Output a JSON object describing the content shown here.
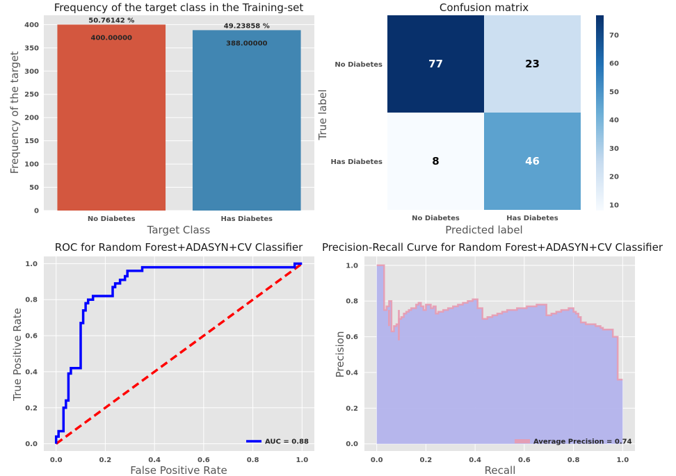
{
  "colors": {
    "panel_bg": "#e5e5e5",
    "grid": "#ffffff",
    "bar_no_diabetes": "#d3573f",
    "bar_has_diabetes": "#4186b2",
    "roc_line": "#0000ff",
    "diagonal": "#ff0000",
    "pr_fill": "#b3b3ec",
    "pr_line": "#e89bb0",
    "cm_dark": "#08306b",
    "cm_light": "#f7fbff"
  },
  "chart_data": [
    {
      "id": "bar",
      "type": "bar",
      "title": "Frequency of the target class in the Training-set",
      "xlabel": "Target Class",
      "ylabel": "Frequency of the target",
      "categories": [
        "No Diabetes",
        "Has Diabetes"
      ],
      "values": [
        400,
        388
      ],
      "value_labels": [
        "400.00000",
        "388.00000"
      ],
      "percent_labels": [
        "50.76142 %",
        "49.23858 %"
      ],
      "ylim": [
        0,
        420
      ],
      "yticks": [
        0,
        50,
        100,
        150,
        200,
        250,
        300,
        350,
        400
      ],
      "grid": true
    },
    {
      "id": "cm",
      "type": "heatmap",
      "title": "Confusion matrix",
      "xlabel": "Predicted label",
      "ylabel": "True label",
      "rows": [
        "No Diabetes",
        "Has Diabetes"
      ],
      "cols": [
        "No Diabetes",
        "Has Diabetes"
      ],
      "values": [
        [
          77,
          23
        ],
        [
          8,
          46
        ]
      ],
      "colorbar": {
        "min": 8,
        "max": 77,
        "ticks": [
          10,
          20,
          30,
          40,
          50,
          60,
          70
        ]
      }
    },
    {
      "id": "roc",
      "type": "line",
      "title": "ROC for Random Forest+ADASYN+CV Classifier",
      "xlabel": "False Positive Rate",
      "ylabel": "True Positive Rate",
      "xlim": [
        -0.05,
        1.05
      ],
      "ylim": [
        -0.04,
        1.04
      ],
      "xticks": [
        0.0,
        0.2,
        0.4,
        0.6,
        0.8,
        1.0
      ],
      "yticks": [
        0.0,
        0.2,
        0.4,
        0.6,
        0.8,
        1.0
      ],
      "legend_position": "lower-right",
      "series": [
        {
          "name": "AUC = 0.88",
          "x": [
            0.0,
            0.0,
            0.01,
            0.01,
            0.03,
            0.03,
            0.04,
            0.04,
            0.05,
            0.05,
            0.06,
            0.06,
            0.08,
            0.08,
            0.1,
            0.1,
            0.11,
            0.11,
            0.12,
            0.12,
            0.13,
            0.13,
            0.15,
            0.15,
            0.16,
            0.16,
            0.23,
            0.23,
            0.24,
            0.24,
            0.26,
            0.26,
            0.28,
            0.28,
            0.29,
            0.29,
            0.35,
            0.35,
            0.97,
            0.97,
            1.0
          ],
          "y": [
            0.0,
            0.04,
            0.04,
            0.07,
            0.07,
            0.2,
            0.2,
            0.24,
            0.24,
            0.39,
            0.39,
            0.42,
            0.42,
            0.42,
            0.42,
            0.67,
            0.67,
            0.74,
            0.74,
            0.78,
            0.78,
            0.8,
            0.8,
            0.82,
            0.82,
            0.82,
            0.82,
            0.87,
            0.87,
            0.89,
            0.89,
            0.91,
            0.91,
            0.93,
            0.93,
            0.96,
            0.96,
            0.98,
            0.98,
            1.0,
            1.0
          ]
        },
        {
          "x": [
            0.0,
            1.0
          ],
          "y": [
            0.0,
            1.0
          ]
        }
      ]
    },
    {
      "id": "pr",
      "type": "area",
      "title": "Precision-Recall Curve for Random Forest+ADASYN+CV Classifier",
      "xlabel": "Recall",
      "ylabel": "Precision",
      "xlim": [
        -0.05,
        1.05
      ],
      "ylim": [
        -0.04,
        1.05
      ],
      "xticks": [
        0.0,
        0.2,
        0.4,
        0.6,
        0.8,
        1.0
      ],
      "yticks": [
        0.0,
        0.2,
        0.4,
        0.6,
        0.8,
        1.0
      ],
      "legend_position": "lower-right",
      "series": [
        {
          "name": "Average Precision = 0.74",
          "recall": [
            0.0,
            0.03,
            0.04,
            0.05,
            0.06,
            0.07,
            0.08,
            0.09,
            0.1,
            0.11,
            0.12,
            0.13,
            0.14,
            0.15,
            0.16,
            0.17,
            0.18,
            0.19,
            0.2,
            0.22,
            0.23,
            0.24,
            0.25,
            0.27,
            0.29,
            0.31,
            0.33,
            0.35,
            0.37,
            0.39,
            0.41,
            0.43,
            0.45,
            0.47,
            0.49,
            0.51,
            0.53,
            0.55,
            0.57,
            0.59,
            0.61,
            0.63,
            0.65,
            0.67,
            0.69,
            0.71,
            0.73,
            0.75,
            0.77,
            0.78,
            0.8,
            0.81,
            0.82,
            0.83,
            0.85,
            0.87,
            0.89,
            0.9,
            0.91,
            0.92,
            0.93,
            0.94,
            0.95,
            0.96,
            0.98,
            1.0
          ],
          "precision": [
            1.0,
            0.75,
            0.77,
            0.8,
            0.63,
            0.66,
            0.67,
            0.7,
            0.71,
            0.73,
            0.74,
            0.75,
            0.76,
            0.76,
            0.78,
            0.79,
            0.77,
            0.75,
            0.78,
            0.76,
            0.77,
            0.73,
            0.74,
            0.75,
            0.76,
            0.77,
            0.78,
            0.79,
            0.8,
            0.81,
            0.76,
            0.7,
            0.71,
            0.72,
            0.73,
            0.74,
            0.75,
            0.75,
            0.76,
            0.76,
            0.77,
            0.77,
            0.78,
            0.78,
            0.72,
            0.73,
            0.74,
            0.75,
            0.75,
            0.76,
            0.74,
            0.73,
            0.71,
            0.68,
            0.67,
            0.67,
            0.66,
            0.66,
            0.65,
            0.64,
            0.64,
            0.64,
            0.64,
            0.6,
            0.36,
            0.36
          ],
          "dips": [
            [
              0.05,
              0.66
            ],
            [
              0.09,
              0.58
            ]
          ]
        }
      ]
    }
  ]
}
